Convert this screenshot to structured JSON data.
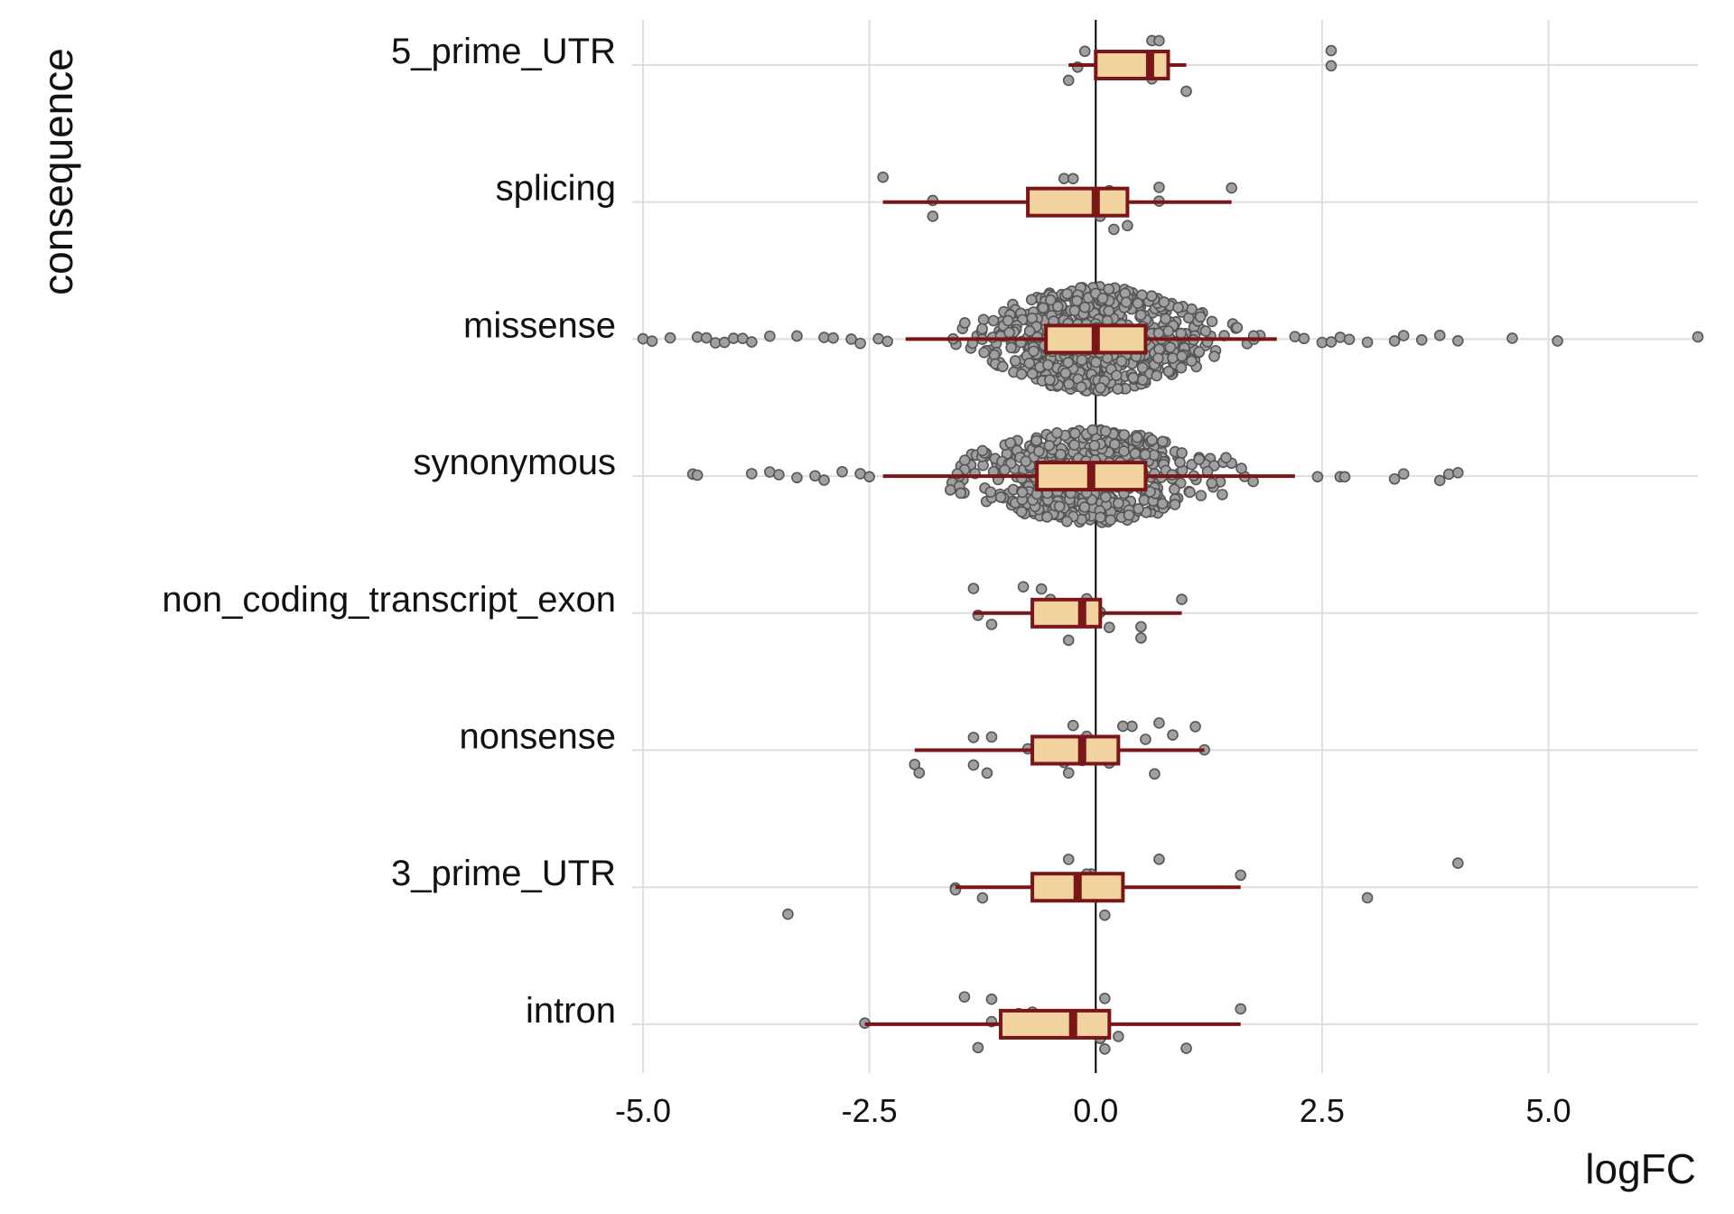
{
  "chart_data": {
    "type": "boxplot",
    "xlabel": "logFC",
    "ylabel": "consequence",
    "xlim": [
      -5.0,
      6.65
    ],
    "x_ticks": [
      "-5.0",
      "-2.5",
      "0.0",
      "2.5",
      "5.0"
    ],
    "x_tick_values": [
      -5.0,
      -2.5,
      0.0,
      2.5,
      5.0
    ],
    "vertical_reference_line": 0.0,
    "grid": true,
    "colors": {
      "box_fill": "#F2D3A0",
      "box_stroke": "#7A1518",
      "point_fill": "#A0A0A0",
      "point_stroke": "#555555",
      "grid": "#DEDEDE"
    },
    "categories": [
      "5_prime_UTR",
      "splicing",
      "missense",
      "synonymous",
      "non_coding_transcript_exon",
      "nonsense",
      "3_prime_UTR",
      "intron"
    ],
    "boxes": [
      {
        "category": "5_prime_UTR",
        "whisker_low": -0.3,
        "q1": 0.0,
        "median": 0.6,
        "q3": 0.8,
        "whisker_high": 1.0,
        "n_points": 12,
        "points": [
          0.62,
          -0.12,
          2.6,
          -0.3,
          1.0,
          0.7,
          2.6,
          -0.2,
          0.62
        ]
      },
      {
        "category": "splicing",
        "whisker_low": -2.35,
        "q1": -0.75,
        "median": 0.0,
        "q3": 0.35,
        "whisker_high": 1.5,
        "n_points": 14,
        "points": [
          -0.35,
          0.15,
          0.7,
          -1.8,
          0.35,
          -2.35,
          1.5,
          -1.8,
          0.05,
          0.2,
          -0.25,
          0.7
        ]
      },
      {
        "category": "missense",
        "whisker_low": -2.1,
        "q1": -0.55,
        "median": 0.0,
        "q3": 0.55,
        "whisker_high": 2.0,
        "n_points": 700,
        "points": [
          -5.0,
          -4.9,
          -4.7,
          -4.4,
          -4.3,
          -4.2,
          -4.1,
          -4.0,
          -3.9,
          -3.8,
          -3.6,
          -3.3,
          -3.0,
          -2.9,
          -2.7,
          -2.6,
          -2.4,
          -2.3,
          2.2,
          2.3,
          2.5,
          2.6,
          2.7,
          2.8,
          3.0,
          3.3,
          3.4,
          3.6,
          3.8,
          4.0,
          4.6,
          5.1,
          6.65
        ]
      },
      {
        "category": "synonymous",
        "whisker_low": -2.35,
        "q1": -0.65,
        "median": -0.05,
        "q3": 0.55,
        "whisker_high": 2.2,
        "n_points": 500,
        "points": [
          -4.45,
          -4.4,
          -3.8,
          -3.6,
          -3.5,
          -3.3,
          -3.1,
          -3.0,
          -2.8,
          -2.6,
          -2.5,
          2.45,
          2.7,
          2.75,
          3.3,
          3.4,
          3.8,
          3.9,
          4.0
        ]
      },
      {
        "category": "non_coding_transcript_exon",
        "whisker_low": -1.35,
        "q1": -0.7,
        "median": -0.15,
        "q3": 0.05,
        "whisker_high": 0.95,
        "n_points": 20,
        "points": [
          -0.6,
          -0.1,
          0.05,
          -1.15,
          -0.3,
          -1.35,
          0.95,
          -1.3,
          0.15,
          0.5,
          -0.8,
          -0.5,
          -0.1,
          0.5
        ]
      },
      {
        "category": "nonsense",
        "whisker_low": -2.0,
        "q1": -0.7,
        "median": -0.15,
        "q3": 0.25,
        "whisker_high": 1.2,
        "n_points": 30,
        "points": [
          -0.25,
          -0.1,
          -0.15,
          0.15,
          0.65,
          0.7,
          -1.15,
          -0.5,
          -1.35,
          -1.2,
          0.4,
          0.85,
          1.2,
          -2.0,
          -1.95,
          1.1,
          -1.35,
          -0.75,
          -0.35,
          -0.3,
          0.3,
          0.55,
          -0.05,
          -0.15
        ]
      },
      {
        "category": "3_prime_UTR",
        "whisker_low": -1.55,
        "q1": -0.7,
        "median": -0.2,
        "q3": 0.3,
        "whisker_high": 1.6,
        "n_points": 16,
        "points": [
          -0.3,
          -0.05,
          -1.55,
          3.0,
          -3.4,
          0.7,
          1.6,
          -1.55,
          -1.25,
          0.1,
          4.0,
          -0.1,
          -0.3
        ]
      },
      {
        "category": "intron",
        "whisker_low": -2.55,
        "q1": -1.05,
        "median": -0.25,
        "q3": 0.15,
        "whisker_high": 1.6,
        "n_points": 16,
        "points": [
          0.1,
          -0.85,
          -0.15,
          0.05,
          -1.3,
          -1.15,
          1.6,
          -2.55,
          0.25,
          1.0,
          -1.45,
          -0.7,
          -1.15,
          0.05,
          0.1
        ]
      }
    ]
  }
}
